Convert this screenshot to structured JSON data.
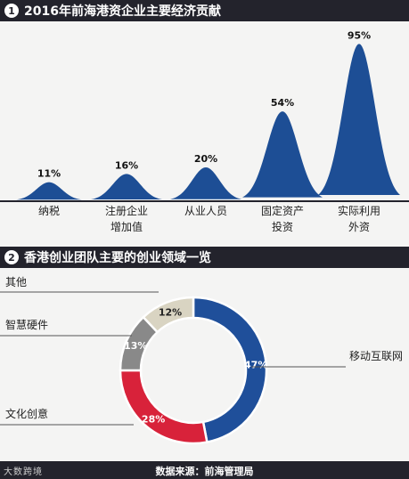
{
  "charts": {
    "section1": {
      "number": "1",
      "title": "2016年前海港资企业主要经济贡献"
    },
    "section2": {
      "number": "2",
      "title": "香港创业团队主要的创业领域一览"
    }
  },
  "chart_data": [
    {
      "type": "area",
      "title": "2016年前海港资企业主要经济贡献",
      "categories": [
        "纳税",
        "注册企业\n增加值",
        "从业人员",
        "固定资产\n投资",
        "实际利用\n外资"
      ],
      "values": [
        11,
        16,
        20,
        54,
        95
      ],
      "value_labels": [
        "11%",
        "16%",
        "20%",
        "54%",
        "95%"
      ],
      "unit": "%",
      "ylim": [
        0,
        100
      ],
      "grid": false,
      "colors": {
        "peak": "#1d4e95",
        "baseline": "#23232c"
      }
    },
    {
      "type": "pie",
      "title": "香港创业团队主要的创业领域一览",
      "labels": [
        "移动互联网",
        "文化创意",
        "智慧硬件",
        "其他"
      ],
      "values": [
        47,
        28,
        13,
        12
      ],
      "value_labels": [
        "47%",
        "28%",
        "13%",
        "12%"
      ],
      "colors": [
        "#1f4f9a",
        "#d8223a",
        "#898989",
        "#d9d4c2"
      ],
      "donut": true
    }
  ],
  "footer": {
    "source": "数据来源：前海管理局",
    "watermark": "大数跨境"
  }
}
